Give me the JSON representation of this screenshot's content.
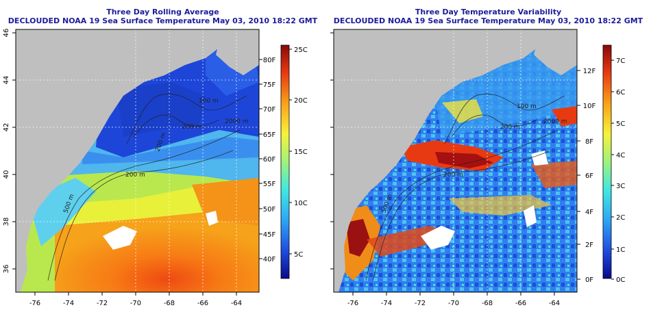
{
  "maps": [
    {
      "id": "avg",
      "title": "Three Day Rolling Average",
      "subtitle": "DECLOUDED NOAA 19 Sea Surface Temperature May 03, 2010 18:22 GMT",
      "x_ticks": [
        "-76",
        "-74",
        "-72",
        "-70",
        "-68",
        "-66",
        "-64"
      ],
      "y_ticks": [
        "36",
        "38",
        "40",
        "42",
        "44",
        "46"
      ],
      "contour_labels": [
        "200 m",
        "200 m",
        "200 m",
        "100 m",
        "2000 m",
        "500 m"
      ],
      "colorbar": {
        "colors": [
          "#0a0a8a",
          "#1f4de0",
          "#2ea6f5",
          "#40e8e0",
          "#9ff27c",
          "#f6f23a",
          "#f9a21a",
          "#e83a12",
          "#8a0808"
        ],
        "labels_f": [
          "40F",
          "45F",
          "50F",
          "55F",
          "60F",
          "65F",
          "70F",
          "75F",
          "80F"
        ],
        "labels_c": [
          "5C",
          "10C",
          "15C",
          "20C",
          "25C"
        ]
      }
    },
    {
      "id": "var",
      "title": "Three Day Temperature Variability",
      "subtitle": "DECLOUDED NOAA 19 Sea Surface Temperature May 03, 2010 18:22 GMT",
      "x_ticks": [
        "-76",
        "-74",
        "-72",
        "-70",
        "-68",
        "-66",
        "-64"
      ],
      "y_ticks": [
        "36",
        "38",
        "40",
        "42",
        "44",
        "46"
      ],
      "contour_labels": [
        "200 m",
        "100 m",
        "200 m",
        "2000 m",
        "500 m"
      ],
      "colorbar": {
        "colors": [
          "#0a0a8a",
          "#1f4de0",
          "#2ea6f5",
          "#40e8e0",
          "#9ff27c",
          "#f6f23a",
          "#f9a21a",
          "#e83a12",
          "#8a0808"
        ],
        "labels_f": [
          "0F",
          "2F",
          "4F",
          "6F",
          "8F",
          "10F",
          "12F"
        ],
        "labels_c": [
          "0C",
          "1C",
          "2C",
          "3C",
          "4C",
          "5C",
          "6C",
          "7C"
        ]
      }
    }
  ]
}
